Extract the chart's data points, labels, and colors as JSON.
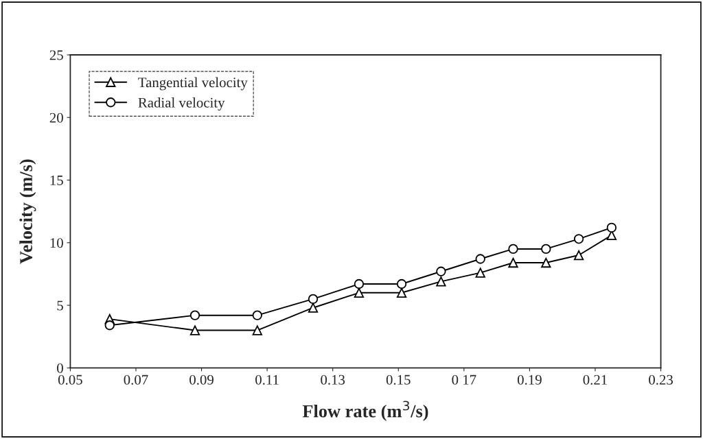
{
  "chart_data": {
    "type": "line",
    "xlabel": "Flow rate (m$^{3}$/s)",
    "ylabel": "Velocity (m/s)",
    "x": [
      0.062,
      0.088,
      0.107,
      0.124,
      0.138,
      0.151,
      0.163,
      0.175,
      0.185,
      0.195,
      0.205,
      0.215
    ],
    "series": [
      {
        "name": "Tangential velocity",
        "color": "#000000",
        "marker": "triangle",
        "values": [
          3.9,
          3.0,
          3.0,
          4.8,
          6.0,
          6.0,
          6.9,
          7.6,
          8.4,
          8.4,
          9.0,
          10.6
        ]
      },
      {
        "name": "Radial velocity",
        "color": "#000000",
        "marker": "circle",
        "values": [
          3.4,
          4.2,
          4.2,
          5.5,
          6.7,
          6.7,
          7.7,
          8.7,
          9.5,
          9.5,
          10.3,
          11.2
        ]
      }
    ],
    "xlim": [
      0.05,
      0.23
    ],
    "xticks": [
      {
        "value": 0.05,
        "label": "0.05"
      },
      {
        "value": 0.07,
        "label": "0.07"
      },
      {
        "value": 0.09,
        "label": "0.09"
      },
      {
        "value": 0.11,
        "label": "0.11"
      },
      {
        "value": 0.13,
        "label": "0.13"
      },
      {
        "value": 0.15,
        "label": "0.15"
      },
      {
        "value": 0.17,
        "label": "0 17"
      },
      {
        "value": 0.19,
        "label": "0.19"
      },
      {
        "value": 0.21,
        "label": "0.21"
      },
      {
        "value": 0.23,
        "label": "0.23"
      }
    ],
    "ylim": [
      0,
      25
    ],
    "yticks": [
      0,
      5,
      10,
      15,
      20,
      25
    ],
    "grid": false,
    "legend": "top left",
    "line_style": "solid"
  }
}
